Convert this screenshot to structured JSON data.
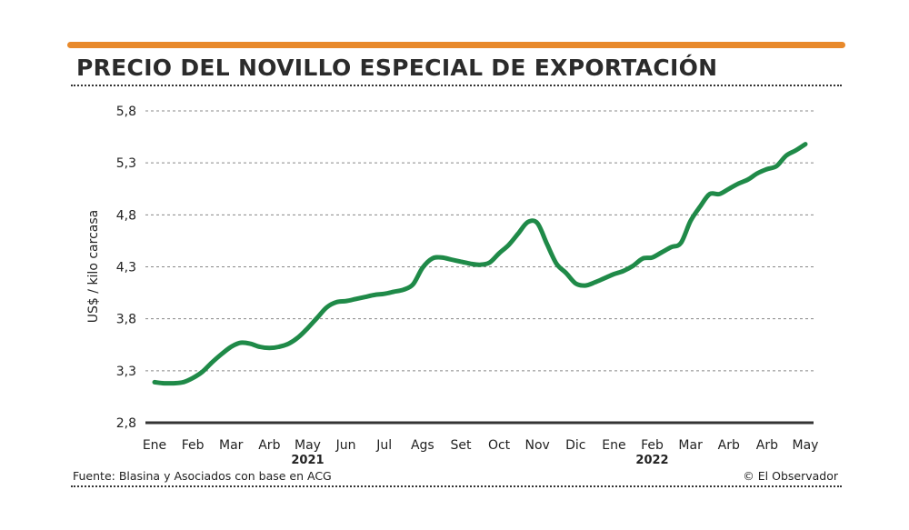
{
  "header": {
    "title": "PRECIO DEL NOVILLO ESPECIAL DE EXPORTACIÓN",
    "accent_color": "#E8892B"
  },
  "footer": {
    "source": "Fuente: Blasina y Asociados con base en ACG",
    "credit": "© El Observador"
  },
  "chart_data": {
    "type": "line",
    "title": "PRECIO DEL NOVILLO ESPECIAL DE EXPORTACIÓN",
    "xlabel": "",
    "ylabel": "US$ / kilo carcasa",
    "ylim": [
      2.8,
      5.8
    ],
    "yticks": [
      2.8,
      3.3,
      3.8,
      4.3,
      4.8,
      5.3,
      5.8
    ],
    "ytick_labels": [
      "2,8",
      "3,3",
      "3,8",
      "4,3",
      "4,8",
      "5,3",
      "5,8"
    ],
    "grid": true,
    "line_color": "#1F8A48",
    "xlim": [
      0,
      17
    ],
    "categories": [
      "Ene",
      "Feb",
      "Mar",
      "Arb",
      "May",
      "Jun",
      "Jul",
      "Ags",
      "Set",
      "Oct",
      "Nov",
      "Dic",
      "Ene",
      "Feb",
      "Mar",
      "Arb",
      "Arb",
      "May"
    ],
    "year_labels": [
      {
        "label": "2021",
        "at": 4
      },
      {
        "label": "2022",
        "at": 13
      }
    ],
    "series": [
      {
        "name": "Precio novillo especial",
        "x": [
          0,
          0.25,
          0.5,
          0.75,
          1,
          1.25,
          1.5,
          1.75,
          2,
          2.25,
          2.5,
          2.75,
          3,
          3.25,
          3.5,
          3.75,
          4,
          4.25,
          4.5,
          4.75,
          5,
          5.25,
          5.5,
          5.75,
          6,
          6.25,
          6.5,
          6.75,
          7,
          7.25,
          7.5,
          7.75,
          8,
          8.25,
          8.5,
          8.75,
          9,
          9.25,
          9.5,
          9.75,
          10,
          10.25,
          10.5,
          10.75,
          11,
          11.25,
          11.5,
          11.75,
          12,
          12.25,
          12.5,
          12.75,
          13,
          13.25,
          13.5,
          13.75,
          14,
          14.25,
          14.5,
          14.75,
          15,
          15.25,
          15.5,
          15.75,
          16,
          16.25,
          16.5,
          16.75,
          17
        ],
        "values": [
          3.19,
          3.18,
          3.18,
          3.19,
          3.23,
          3.29,
          3.38,
          3.46,
          3.53,
          3.57,
          3.56,
          3.53,
          3.52,
          3.53,
          3.56,
          3.62,
          3.71,
          3.81,
          3.91,
          3.96,
          3.97,
          3.99,
          4.01,
          4.03,
          4.04,
          4.06,
          4.08,
          4.13,
          4.29,
          4.38,
          4.39,
          4.37,
          4.35,
          4.33,
          4.32,
          4.34,
          4.43,
          4.51,
          4.62,
          4.73,
          4.72,
          4.52,
          4.33,
          4.24,
          4.14,
          4.12,
          4.15,
          4.19,
          4.23,
          4.26,
          4.31,
          4.38,
          4.39,
          4.44,
          4.49,
          4.53,
          4.74,
          4.88,
          5.0,
          5.0,
          5.05,
          5.1,
          5.14,
          5.2,
          5.24,
          5.27,
          5.37,
          5.42,
          5.48
        ]
      }
    ]
  }
}
